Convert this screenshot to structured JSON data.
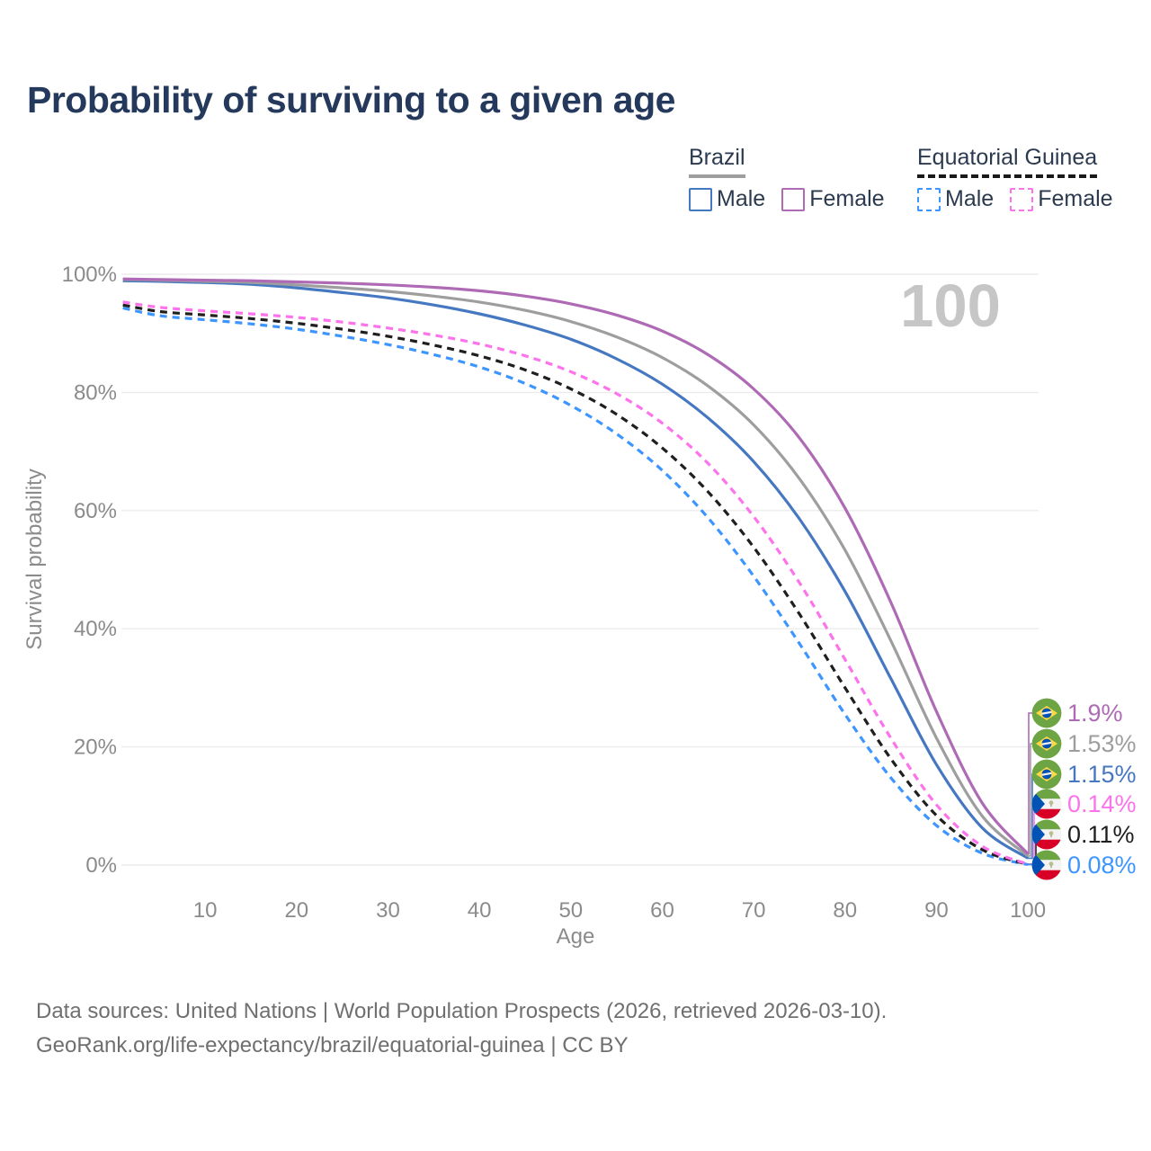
{
  "title": "Probability of surviving to a given age",
  "legend": {
    "groups": [
      {
        "name": "Brazil",
        "line_style": "solid",
        "header_line_color": "#9e9e9e",
        "items": [
          {
            "label": "Male",
            "color": "#4678c2",
            "dashed": false
          },
          {
            "label": "Female",
            "color": "#ae6ab4",
            "dashed": false
          }
        ]
      },
      {
        "name": "Equatorial Guinea",
        "line_style": "dashed",
        "header_line_color": "#1a1a1a",
        "items": [
          {
            "label": "Male",
            "color": "#3d95ff",
            "dashed": true
          },
          {
            "label": "Female",
            "color": "#fc73ec",
            "dashed": true
          }
        ]
      }
    ]
  },
  "chart_data": {
    "type": "line",
    "title": "Probability of surviving to a given age",
    "xlabel": "Age",
    "ylabel": "Survival probability",
    "x_range": [
      0,
      100
    ],
    "y_range": [
      0,
      100
    ],
    "grid": "horizontal",
    "legend_position": "top-right",
    "current_age_label": "100",
    "x_ticks": [
      10,
      20,
      30,
      40,
      50,
      60,
      70,
      80,
      90,
      100
    ],
    "y_ticks": [
      {
        "value": 0,
        "label": "0%"
      },
      {
        "value": 20,
        "label": "20%"
      },
      {
        "value": 40,
        "label": "40%"
      },
      {
        "value": 60,
        "label": "60%"
      },
      {
        "value": 80,
        "label": "80%"
      },
      {
        "value": 100,
        "label": "100%"
      }
    ],
    "ages": [
      1,
      5,
      10,
      15,
      20,
      25,
      30,
      35,
      40,
      45,
      50,
      55,
      60,
      65,
      70,
      75,
      80,
      85,
      90,
      95,
      100
    ],
    "series": [
      {
        "name": "Brazil Female",
        "country": "Brazil",
        "sex": "female",
        "color": "#ae6ab4",
        "dashed": false,
        "flag": "brazil",
        "end_label": "1.9%",
        "values": [
          99.2,
          99.1,
          99.0,
          98.9,
          98.7,
          98.5,
          98.2,
          97.8,
          97.2,
          96.3,
          95.0,
          93.1,
          90.4,
          86.4,
          80.6,
          72.3,
          60.4,
          44.5,
          26.0,
          10.5,
          1.9
        ]
      },
      {
        "name": "Brazil Both sexes",
        "country": "Brazil",
        "sex": "both",
        "color": "#9e9e9e",
        "dashed": false,
        "flag": "brazil",
        "end_label": "1.53%",
        "values": [
          99.1,
          99.0,
          98.8,
          98.6,
          98.2,
          97.7,
          97.1,
          96.3,
          95.3,
          93.9,
          92.0,
          89.4,
          85.9,
          81.1,
          74.5,
          65.4,
          53.3,
          38.0,
          21.5,
          8.3,
          1.53
        ]
      },
      {
        "name": "Brazil Male",
        "country": "Brazil",
        "sex": "male",
        "color": "#4678c2",
        "dashed": false,
        "flag": "brazil",
        "end_label": "1.15%",
        "values": [
          98.9,
          98.8,
          98.6,
          98.3,
          97.7,
          96.9,
          96.0,
          94.8,
          93.3,
          91.4,
          89.0,
          85.7,
          81.4,
          75.7,
          68.3,
          58.6,
          46.3,
          31.6,
          17.0,
          6.3,
          1.15
        ]
      },
      {
        "name": "Equatorial Guinea Female",
        "country": "Equatorial Guinea",
        "sex": "female",
        "color": "#fc73ec",
        "dashed": true,
        "flag": "equatorial-guinea",
        "end_label": "0.14%",
        "values": [
          95.3,
          94.4,
          93.8,
          93.3,
          92.7,
          91.9,
          90.9,
          89.7,
          88.2,
          86.2,
          83.5,
          79.8,
          74.8,
          68.0,
          59.0,
          47.8,
          34.8,
          21.5,
          10.2,
          3.2,
          0.14
        ]
      },
      {
        "name": "Equatorial Guinea Both sexes",
        "country": "Equatorial Guinea",
        "sex": "both",
        "color": "#1f1f1f",
        "dashed": true,
        "flag": "equatorial-guinea",
        "end_label": "0.11%",
        "values": [
          94.8,
          93.7,
          93.1,
          92.5,
          91.7,
          90.7,
          89.5,
          88.0,
          86.2,
          83.8,
          80.6,
          76.3,
          70.6,
          63.2,
          53.8,
          42.5,
          30.0,
          18.0,
          8.4,
          2.6,
          0.11
        ]
      },
      {
        "name": "Equatorial Guinea Male",
        "country": "Equatorial Guinea",
        "sex": "male",
        "color": "#3d95ff",
        "dashed": true,
        "flag": "equatorial-guinea",
        "end_label": "0.08%",
        "values": [
          94.3,
          93.0,
          92.3,
          91.6,
          90.7,
          89.5,
          88.1,
          86.4,
          84.3,
          81.5,
          77.8,
          73.0,
          66.8,
          58.8,
          48.9,
          37.5,
          25.5,
          14.8,
          6.7,
          2.0,
          0.08
        ]
      }
    ]
  },
  "footer": {
    "line1": "Data sources: United Nations | World Population Prospects (2026, retrieved 2026-03-10).",
    "line2": "GeoRank.org/life-expectancy/brazil/equatorial-guinea | CC BY"
  },
  "colors": {
    "title": "#24395b",
    "axis_text": "#8b8b8b",
    "gridline": "#ececec",
    "watermark": "#c6c6c6",
    "footer_text": "#6f6f6f"
  }
}
